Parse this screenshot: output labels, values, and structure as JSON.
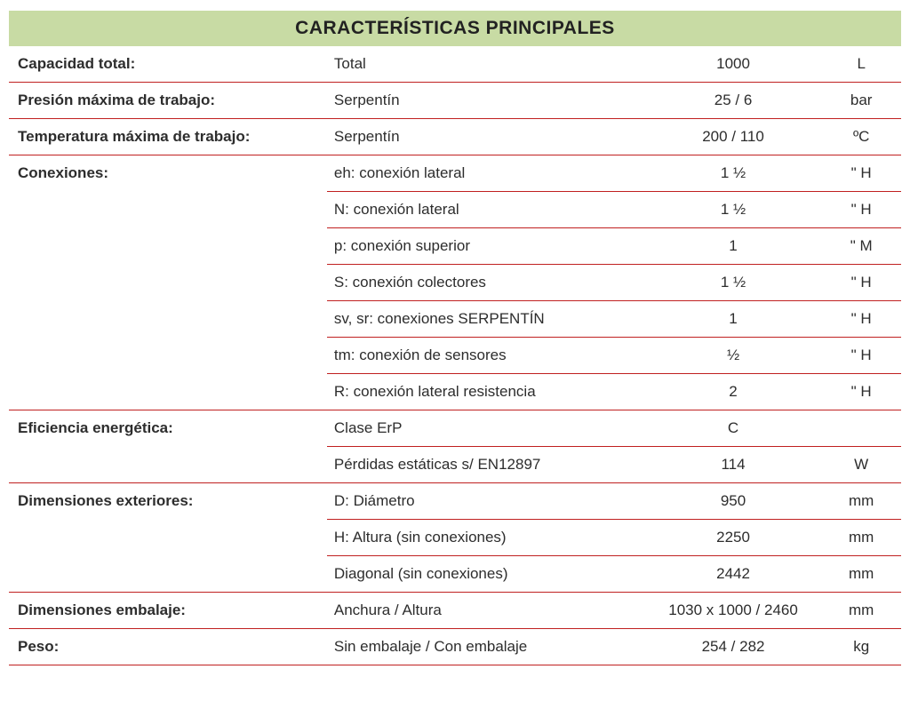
{
  "title": "CARACTERÍSTICAS PRINCIPALES",
  "colors": {
    "header_bg": "#c8dba4",
    "divider": "#c02020",
    "text": "#2d2d2d",
    "background": "#ffffff"
  },
  "font_sizes": {
    "title": 21,
    "cell": 17
  },
  "rows": {
    "r0": {
      "label": "Capacidad total:",
      "desc": "Total",
      "value": "1000",
      "unit": "L"
    },
    "r1": {
      "label": "Presión máxima de trabajo:",
      "desc": "Serpentín",
      "value": "25 / 6",
      "unit": "bar"
    },
    "r2": {
      "label": "Temperatura máxima de trabajo:",
      "desc": "Serpentín",
      "value": "200 / 110",
      "unit": "ºC"
    },
    "r3": {
      "label": "Conexiones:",
      "desc": "eh: conexión lateral",
      "value": "1 ½",
      "unit": "\" H"
    },
    "r4": {
      "label": "",
      "desc": "N: conexión lateral",
      "value": "1 ½",
      "unit": "\" H"
    },
    "r5": {
      "label": "",
      "desc": "p: conexión superior",
      "value": "1",
      "unit": "\" M"
    },
    "r6": {
      "label": "",
      "desc": "S: conexión colectores",
      "value": "1 ½",
      "unit": "\" H"
    },
    "r7": {
      "label": "",
      "desc": "sv, sr: conexiones SERPENTÍN",
      "value": "1",
      "unit": "\" H"
    },
    "r8": {
      "label": "",
      "desc": "tm: conexión de sensores",
      "value": "½",
      "unit": "\" H"
    },
    "r9": {
      "label": "",
      "desc": "R: conexión lateral resistencia",
      "value": "2",
      "unit": "\" H"
    },
    "r10": {
      "label": "Eficiencia energética:",
      "desc": "Clase ErP",
      "value": "C",
      "unit": ""
    },
    "r11": {
      "label": "",
      "desc": "Pérdidas estáticas s/ EN12897",
      "value": "114",
      "unit": "W"
    },
    "r12": {
      "label": "Dimensiones exteriores:",
      "desc": "D: Diámetro",
      "value": "950",
      "unit": "mm"
    },
    "r13": {
      "label": "",
      "desc": "H: Altura (sin conexiones)",
      "value": "2250",
      "unit": "mm"
    },
    "r14": {
      "label": "",
      "desc": "Diagonal (sin conexiones)",
      "value": "2442",
      "unit": "mm"
    },
    "r15": {
      "label": "Dimensiones embalaje:",
      "desc": "Anchura / Altura",
      "value": "1030 x 1000 / 2460",
      "unit": "mm"
    },
    "r16": {
      "label": "Peso:",
      "desc": "Sin embalaje / Con embalaje",
      "value": "254 / 282",
      "unit": "kg"
    }
  },
  "groups": [
    {
      "label_row": "r0",
      "subrows": []
    },
    {
      "label_row": "r1",
      "subrows": []
    },
    {
      "label_row": "r2",
      "subrows": []
    },
    {
      "label_row": "r3",
      "subrows": [
        "r4",
        "r5",
        "r6",
        "r7",
        "r8",
        "r9"
      ]
    },
    {
      "label_row": "r10",
      "subrows": [
        "r11"
      ]
    },
    {
      "label_row": "r12",
      "subrows": [
        "r13",
        "r14"
      ]
    },
    {
      "label_row": "r15",
      "subrows": []
    },
    {
      "label_row": "r16",
      "subrows": []
    }
  ]
}
